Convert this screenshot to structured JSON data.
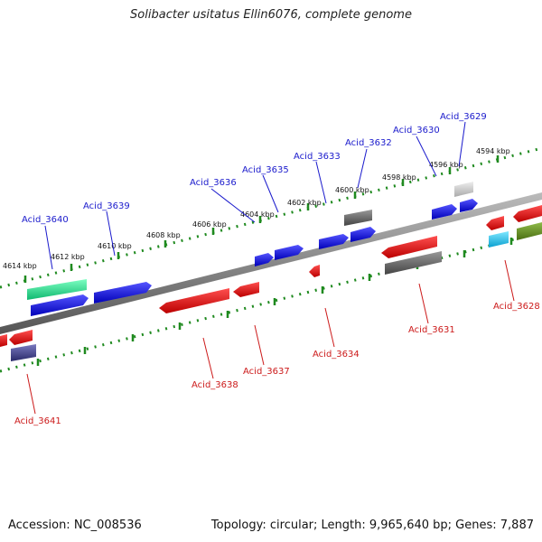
{
  "title": "Solibacter usitatus Ellin6076, complete genome",
  "accession": "Accession: NC_008536",
  "summary": "Topology: circular; Length: 9,965,640 bp; Genes: 7,887",
  "scale_labels": [
    "4614 kbp",
    "4612 kbp",
    "4610 kbp",
    "4608 kbp",
    "4606 kbp",
    "4604 kbp",
    "4602 kbp",
    "4600 kbp",
    "4598 kbp",
    "4596 kbp",
    "4594 kbp"
  ],
  "genes_top": [
    "Acid_3640",
    "Acid_3639",
    "Acid_3636",
    "Acid_3635",
    "Acid_3633",
    "Acid_3632",
    "Acid_3630",
    "Acid_3629"
  ],
  "genes_bottom": [
    "Acid_3641",
    "Acid_3638",
    "Acid_3637",
    "Acid_3634",
    "Acid_3631",
    "Acid_3628"
  ],
  "colors": {
    "forward_label": "#1a1acc",
    "reverse_label": "#cc1a1a",
    "backbone": "#777777",
    "ruler": "#1f8a1f",
    "blue": "#1515e0",
    "red": "#e01515",
    "grey": "#6a6a6a",
    "green": "#33e08f",
    "cyan": "#22c6ee",
    "olive": "#5f8a22",
    "navy": "#4a4a8a",
    "lightgrey": "#c8c8c8"
  }
}
